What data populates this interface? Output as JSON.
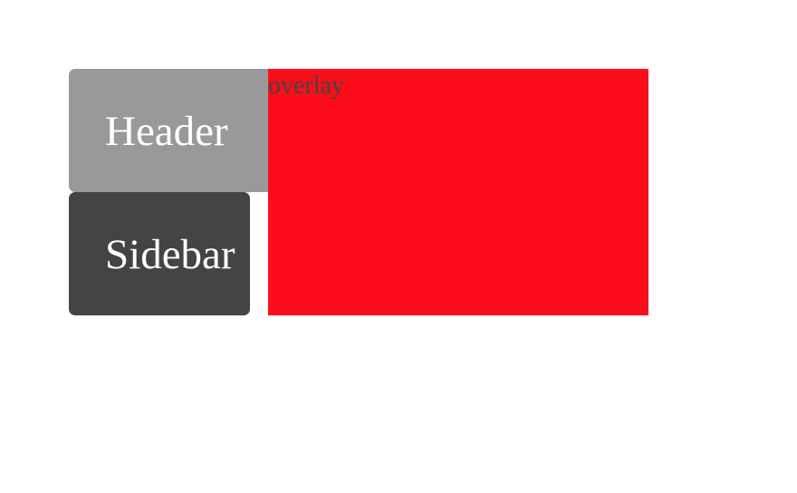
{
  "header": {
    "label": "Header"
  },
  "sidebar": {
    "label": "Sidebar"
  },
  "overlay": {
    "label": "overlay"
  },
  "colors": {
    "header_bg": "#999999",
    "sidebar_bg": "#444444",
    "overlay_bg": "#fd0d1b",
    "overlay_text": "#444444",
    "text": "#ffffff"
  }
}
